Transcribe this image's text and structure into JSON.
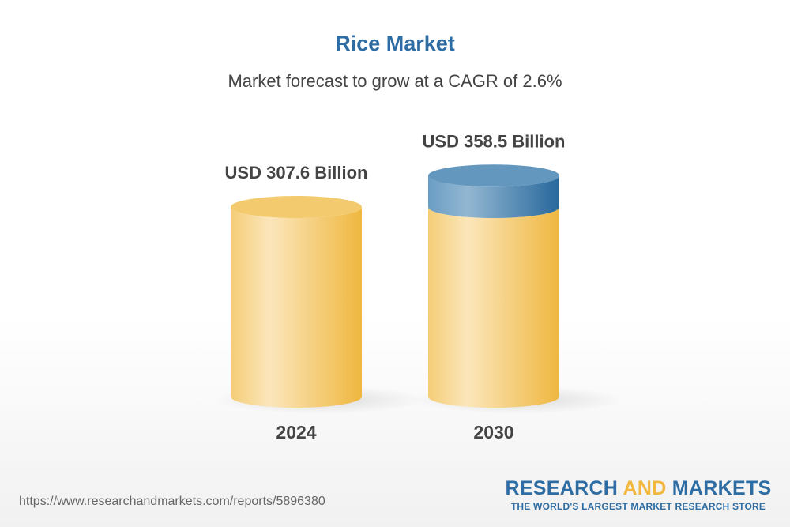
{
  "chart_data": {
    "type": "bar",
    "title": "Rice Market",
    "subtitle": "Market forecast to grow at a CAGR of 2.6%",
    "categories": [
      "2024",
      "2030"
    ],
    "values": [
      307.6,
      358.5
    ],
    "data_labels": [
      "USD 307.6 Billion",
      "USD 358.5 Billion"
    ],
    "unit": "USD Billion",
    "style": "3d-cylinder",
    "colors": {
      "bar": "#f2c766",
      "growth": "#5b92bb",
      "title": "#2e6da4"
    }
  },
  "footer": {
    "url": "https://www.researchandmarkets.com/reports/5896380",
    "logo_part1": "RESEARCH ",
    "logo_part2": "AND",
    "logo_part3": " MARKETS",
    "tagline": "THE WORLD'S LARGEST MARKET RESEARCH STORE"
  }
}
